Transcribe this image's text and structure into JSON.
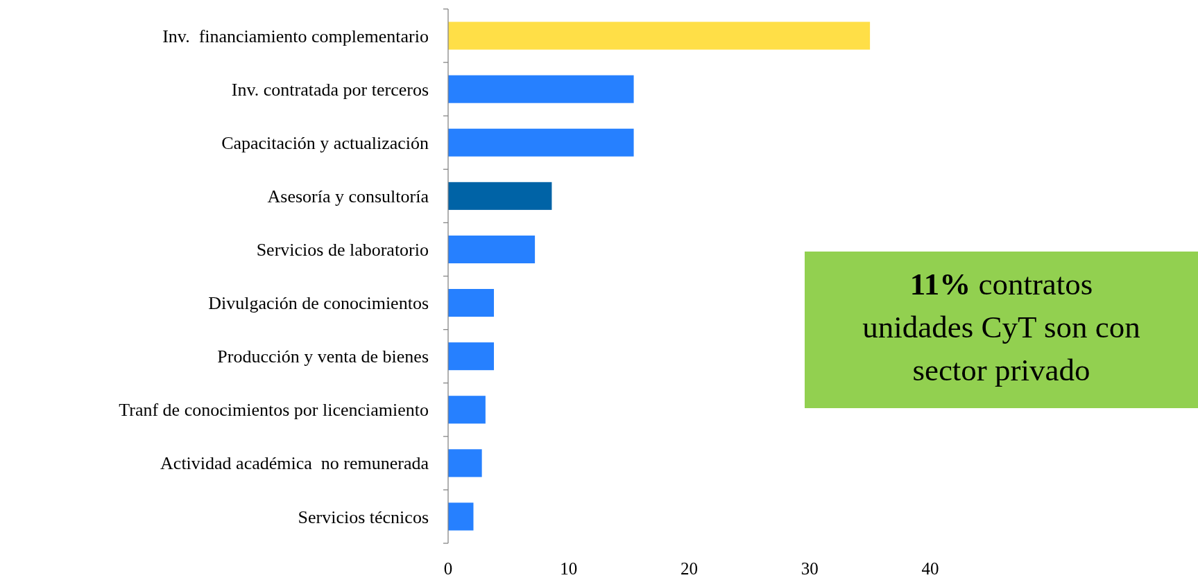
{
  "chart_data": {
    "type": "bar",
    "orientation": "horizontal",
    "categories": [
      "Inv.  financiamiento complementario",
      "Inv. contratada por terceros",
      "Capacitación y actualización",
      "Asesoría y consultoría",
      "Servicios de laboratorio",
      "Divulgación de conocimientos",
      "Producción y venta de bienes",
      "Tranf de conocimientos por licenciamiento",
      "Actividad académica  no remunerada",
      "Servicios técnicos"
    ],
    "values": [
      35.0,
      15.4,
      15.4,
      8.6,
      7.2,
      3.8,
      3.8,
      3.1,
      2.8,
      2.1
    ],
    "colors": [
      "#ffdf47",
      "#2680ff",
      "#2680ff",
      "#0063a6",
      "#2680ff",
      "#2680ff",
      "#2680ff",
      "#2680ff",
      "#2680ff",
      "#2680ff"
    ],
    "xlim": [
      0,
      40
    ],
    "xticks": [
      0,
      10,
      20,
      30,
      40
    ],
    "grid": false,
    "annotations": [
      "11% contratos unidades CyT son con sector privado"
    ]
  }
}
